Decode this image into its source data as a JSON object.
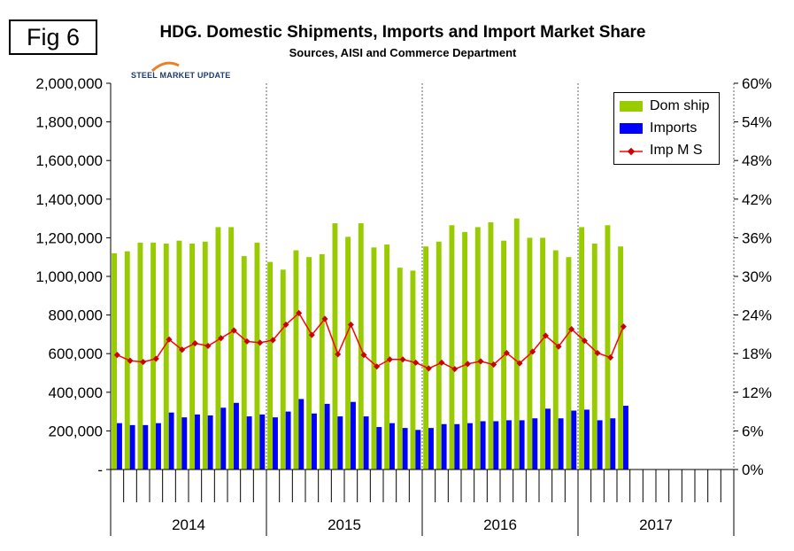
{
  "fig_label": "Fig 6",
  "title": "HDG. Domestic Shipments, Imports and Import Market Share",
  "subtitle": "Sources, AISI and Commerce Department",
  "logo_text": "STEEL MARKET UPDATE",
  "colors": {
    "dom_ship": "#99cc00",
    "imports": "#0000ff",
    "imp_ms": "#ff0000",
    "imp_ms_marker": "#cc0000"
  },
  "legend": [
    "Dom ship",
    "Imports",
    "Imp M S"
  ],
  "chart_data": {
    "type": "bar",
    "title": "HDG. Domestic Shipments, Imports and Import Market Share",
    "subtitle": "Sources, AISI and Commerce Department",
    "years": [
      "2014",
      "2015",
      "2016",
      "2017"
    ],
    "months_per_year": 12,
    "y_left": {
      "min": 0,
      "max": 2000000,
      "ticks": [
        "-",
        "200,000",
        "400,000",
        "600,000",
        "800,000",
        "1,000,000",
        "1,200,000",
        "1,400,000",
        "1,600,000",
        "1,800,000",
        "2,000,000"
      ]
    },
    "y_right": {
      "min": 0,
      "max": 60,
      "ticks": [
        "0%",
        "6%",
        "12%",
        "18%",
        "24%",
        "30%",
        "36%",
        "42%",
        "48%",
        "54%",
        "60%"
      ]
    },
    "legend_position": "top-right",
    "series": [
      {
        "name": "Dom ship",
        "type": "bar",
        "values": [
          1120000,
          1130000,
          1175000,
          1175000,
          1170000,
          1185000,
          1170000,
          1180000,
          1255000,
          1255000,
          1105000,
          1175000,
          1075000,
          1035000,
          1135000,
          1100000,
          1115000,
          1275000,
          1205000,
          1275000,
          1150000,
          1165000,
          1045000,
          1030000,
          1155000,
          1180000,
          1265000,
          1230000,
          1255000,
          1280000,
          1185000,
          1300000,
          1200000,
          1200000,
          1135000,
          1100000,
          1255000,
          1170000,
          1265000,
          1155000
        ]
      },
      {
        "name": "Imports",
        "type": "bar",
        "values": [
          240000,
          230000,
          230000,
          240000,
          295000,
          270000,
          285000,
          280000,
          320000,
          345000,
          275000,
          285000,
          270000,
          300000,
          365000,
          290000,
          340000,
          275000,
          350000,
          275000,
          220000,
          240000,
          215000,
          205000,
          215000,
          235000,
          235000,
          240000,
          250000,
          250000,
          255000,
          255000,
          265000,
          315000,
          265000,
          305000,
          310000,
          255000,
          265000,
          330000
        ]
      },
      {
        "name": "Imp M S",
        "type": "line",
        "values": [
          17.8,
          16.9,
          16.7,
          17.2,
          20.2,
          18.6,
          19.6,
          19.2,
          20.4,
          21.6,
          19.9,
          19.7,
          20.1,
          22.5,
          24.3,
          20.9,
          23.4,
          17.9,
          22.5,
          17.8,
          16.0,
          17.1,
          17.1,
          16.6,
          15.7,
          16.6,
          15.6,
          16.4,
          16.8,
          16.3,
          18.1,
          16.5,
          18.3,
          20.8,
          19.1,
          21.8,
          20.0,
          18.1,
          17.4,
          22.2
        ]
      }
    ]
  }
}
